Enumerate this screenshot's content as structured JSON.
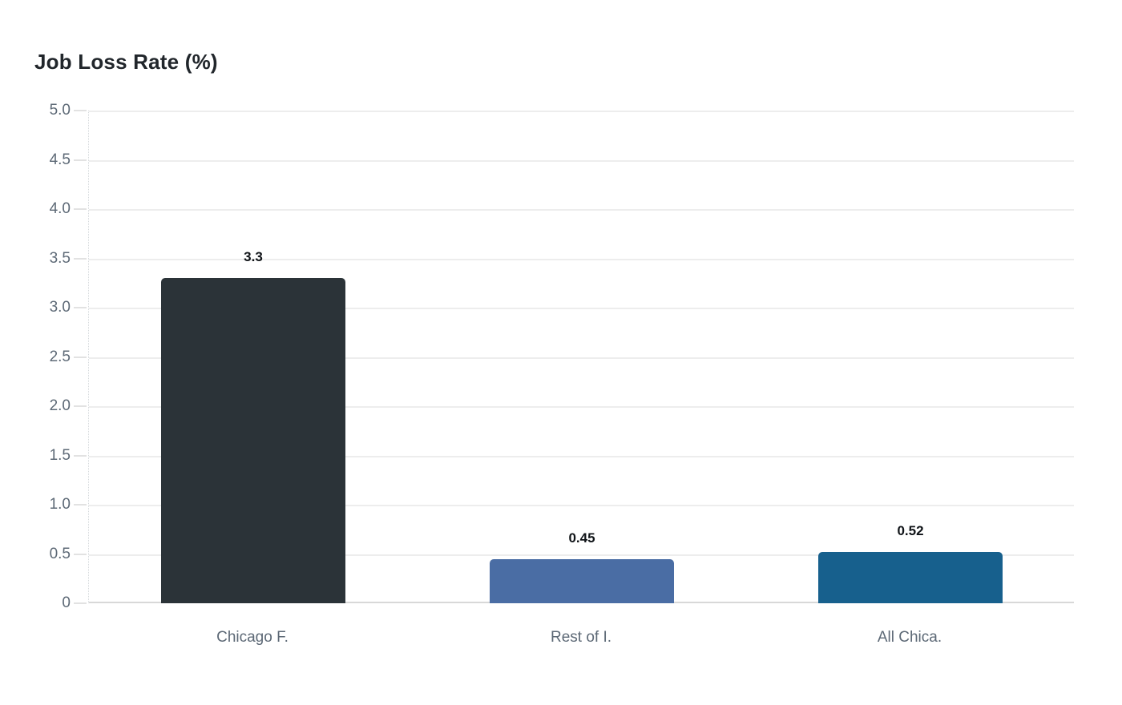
{
  "chart_data": {
    "type": "bar",
    "title": "Job Loss Rate (%)",
    "xlabel": "",
    "ylabel": "",
    "categories": [
      "Chicago F.",
      "Rest of I.",
      "All Chica."
    ],
    "values": [
      3.3,
      0.45,
      0.52
    ],
    "value_labels": [
      "3.3",
      "0.45",
      "0.52"
    ],
    "bar_colors": [
      "#2b3338",
      "#4a6da4",
      "#17608d"
    ],
    "ylim": [
      0,
      5
    ],
    "yticks": [
      0,
      0.5,
      1,
      1.5,
      2,
      2.5,
      3,
      3.5,
      4,
      4.5,
      5
    ],
    "ytick_labels": [
      "0",
      "0.5",
      "1.0",
      "1.5",
      "2.0",
      "2.5",
      "3.0",
      "3.5",
      "4.0",
      "4.5",
      "5.0"
    ],
    "grid": "horizontal",
    "legend": "none"
  },
  "theme": {
    "background": "#ffffff",
    "title_color": "#21262b",
    "axis_label_color": "#5d6976",
    "grid_color": "#ededed",
    "baseline_color": "#d8d8d8",
    "tick_mark_color": "#e2e2e2",
    "value_label_color": "#0f1317"
  }
}
